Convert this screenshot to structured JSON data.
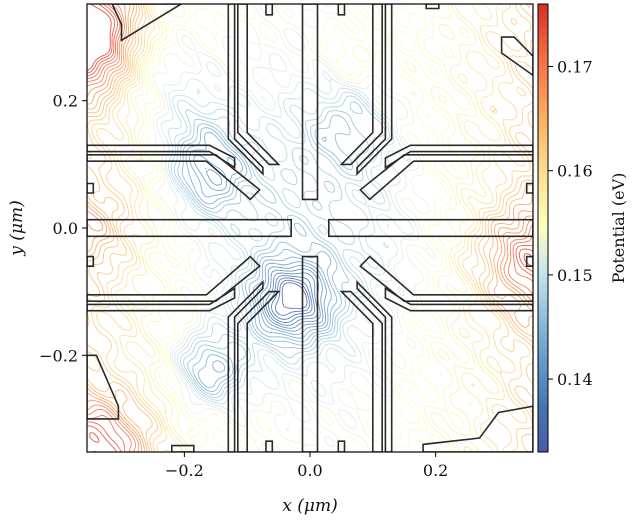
{
  "chart_data": {
    "type": "contour",
    "xlabel": "x (μm)",
    "ylabel": "y (μm)",
    "xlim": [
      -0.355,
      0.355
    ],
    "ylim": [
      -0.352,
      0.352
    ],
    "xticks": [
      -0.2,
      0.0,
      0.2
    ],
    "xtick_labels": [
      "−0.2",
      "0.0",
      "0.2"
    ],
    "yticks": [
      -0.2,
      0.0,
      0.2
    ],
    "ytick_labels": [
      "−0.2",
      "0.0",
      "0.2"
    ],
    "colorbar": {
      "label": "Potential (eV)",
      "colormap": "RdYlBu_r",
      "range": [
        0.133,
        0.176
      ],
      "ticks": [
        0.14,
        0.15,
        0.16,
        0.17
      ],
      "tick_labels": [
        "0.14",
        "0.15",
        "0.16",
        "0.17"
      ]
    },
    "field": {
      "min": 0.133,
      "max": 0.176,
      "global_minimum": {
        "x": -0.03,
        "y": -0.115,
        "value": 0.133
      },
      "secondary_minima": [
        {
          "x": -0.16,
          "y": 0.08,
          "value": 0.141
        },
        {
          "x": -0.16,
          "y": -0.22,
          "value": 0.14
        },
        {
          "x": -0.18,
          "y": 0.15,
          "value": 0.144
        },
        {
          "x": 0.06,
          "y": 0.16,
          "value": 0.143
        }
      ],
      "maxima": [
        {
          "x": -0.35,
          "y": 0.3,
          "value": 0.176
        },
        {
          "x": -0.33,
          "y": -0.35,
          "value": 0.172
        },
        {
          "x": 0.35,
          "y": -0.05,
          "value": 0.171
        },
        {
          "x": -0.35,
          "y": 0.0,
          "value": 0.165
        }
      ],
      "contour_levels": 38
    },
    "gates": [
      {
        "name": "plunger-top-left",
        "points": [
          [
            -0.13,
            0.352
          ],
          [
            -0.12,
            0.352
          ],
          [
            -0.12,
            0.14
          ],
          [
            -0.075,
            0.095
          ],
          [
            -0.075,
            0.085
          ],
          [
            -0.13,
            0.14
          ]
        ]
      },
      {
        "name": "barrier-top-left",
        "points": [
          [
            -0.115,
            0.352
          ],
          [
            -0.115,
            0.15
          ],
          [
            -0.065,
            0.1
          ],
          [
            -0.05,
            0.1
          ],
          [
            -0.1,
            0.15
          ],
          [
            -0.1,
            0.352
          ]
        ]
      },
      {
        "name": "finger-top",
        "points": [
          [
            -0.012,
            0.352
          ],
          [
            0.012,
            0.352
          ],
          [
            0.012,
            0.045
          ],
          [
            -0.012,
            0.045
          ]
        ]
      },
      {
        "name": "barrier-top-right",
        "points": [
          [
            0.1,
            0.352
          ],
          [
            0.1,
            0.15
          ],
          [
            0.05,
            0.1
          ],
          [
            0.065,
            0.1
          ],
          [
            0.115,
            0.15
          ],
          [
            0.115,
            0.352
          ]
        ]
      },
      {
        "name": "plunger-top-right",
        "points": [
          [
            0.12,
            0.352
          ],
          [
            0.13,
            0.352
          ],
          [
            0.13,
            0.14
          ],
          [
            0.075,
            0.085
          ],
          [
            0.075,
            0.095
          ],
          [
            0.12,
            0.14
          ]
        ]
      },
      {
        "name": "lead-left-upper",
        "points": [
          [
            -0.355,
            0.12
          ],
          [
            -0.16,
            0.12
          ],
          [
            -0.12,
            0.095
          ],
          [
            -0.12,
            0.11
          ],
          [
            -0.16,
            0.13
          ],
          [
            -0.355,
            0.13
          ]
        ]
      },
      {
        "name": "gate-left-upper-2",
        "points": [
          [
            -0.355,
            0.105
          ],
          [
            -0.165,
            0.105
          ],
          [
            -0.095,
            0.045
          ],
          [
            -0.08,
            0.06
          ],
          [
            -0.15,
            0.115
          ],
          [
            -0.355,
            0.115
          ]
        ]
      },
      {
        "name": "finger-left",
        "points": [
          [
            -0.355,
            0.013
          ],
          [
            -0.03,
            0.013
          ],
          [
            -0.03,
            -0.013
          ],
          [
            -0.355,
            -0.013
          ]
        ]
      },
      {
        "name": "gate-left-lower-2",
        "points": [
          [
            -0.355,
            -0.105
          ],
          [
            -0.165,
            -0.105
          ],
          [
            -0.095,
            -0.045
          ],
          [
            -0.08,
            -0.06
          ],
          [
            -0.15,
            -0.115
          ],
          [
            -0.355,
            -0.115
          ]
        ]
      },
      {
        "name": "lead-left-lower",
        "points": [
          [
            -0.355,
            -0.12
          ],
          [
            -0.16,
            -0.12
          ],
          [
            -0.12,
            -0.095
          ],
          [
            -0.12,
            -0.11
          ],
          [
            -0.16,
            -0.13
          ],
          [
            -0.355,
            -0.13
          ]
        ]
      },
      {
        "name": "finger-right",
        "points": [
          [
            0.355,
            0.013
          ],
          [
            0.03,
            0.013
          ],
          [
            0.03,
            -0.013
          ],
          [
            0.355,
            -0.013
          ]
        ]
      },
      {
        "name": "gate-right-upper",
        "points": [
          [
            0.355,
            0.105
          ],
          [
            0.165,
            0.105
          ],
          [
            0.095,
            0.045
          ],
          [
            0.08,
            0.06
          ],
          [
            0.15,
            0.115
          ],
          [
            0.355,
            0.115
          ]
        ]
      },
      {
        "name": "lead-right-upper",
        "points": [
          [
            0.355,
            0.12
          ],
          [
            0.16,
            0.12
          ],
          [
            0.12,
            0.095
          ],
          [
            0.12,
            0.11
          ],
          [
            0.16,
            0.13
          ],
          [
            0.355,
            0.13
          ]
        ]
      },
      {
        "name": "gate-right-lower",
        "points": [
          [
            0.355,
            -0.105
          ],
          [
            0.165,
            -0.105
          ],
          [
            0.095,
            -0.045
          ],
          [
            0.08,
            -0.06
          ],
          [
            0.15,
            -0.115
          ],
          [
            0.355,
            -0.115
          ]
        ]
      },
      {
        "name": "lead-right-lower",
        "points": [
          [
            0.355,
            -0.12
          ],
          [
            0.16,
            -0.12
          ],
          [
            0.12,
            -0.095
          ],
          [
            0.12,
            -0.11
          ],
          [
            0.16,
            -0.13
          ],
          [
            0.355,
            -0.13
          ]
        ]
      },
      {
        "name": "plunger-bottom-left",
        "points": [
          [
            -0.13,
            -0.352
          ],
          [
            -0.12,
            -0.352
          ],
          [
            -0.12,
            -0.14
          ],
          [
            -0.075,
            -0.095
          ],
          [
            -0.075,
            -0.085
          ],
          [
            -0.13,
            -0.14
          ]
        ]
      },
      {
        "name": "barrier-bottom-left",
        "points": [
          [
            -0.115,
            -0.352
          ],
          [
            -0.115,
            -0.15
          ],
          [
            -0.065,
            -0.1
          ],
          [
            -0.05,
            -0.1
          ],
          [
            -0.1,
            -0.15
          ],
          [
            -0.1,
            -0.352
          ]
        ]
      },
      {
        "name": "finger-bottom",
        "points": [
          [
            -0.012,
            -0.352
          ],
          [
            0.012,
            -0.352
          ],
          [
            0.012,
            -0.045
          ],
          [
            -0.012,
            -0.045
          ]
        ]
      },
      {
        "name": "barrier-bottom-right",
        "points": [
          [
            0.1,
            -0.352
          ],
          [
            0.1,
            -0.15
          ],
          [
            0.05,
            -0.1
          ],
          [
            0.065,
            -0.1
          ],
          [
            0.115,
            -0.15
          ],
          [
            0.115,
            -0.352
          ]
        ]
      },
      {
        "name": "plunger-bottom-right",
        "points": [
          [
            0.12,
            -0.352
          ],
          [
            0.13,
            -0.352
          ],
          [
            0.13,
            -0.14
          ],
          [
            0.075,
            -0.085
          ],
          [
            0.075,
            -0.095
          ],
          [
            0.12,
            -0.14
          ]
        ]
      },
      {
        "name": "reservoir-top-left",
        "points": [
          [
            -0.315,
            0.352
          ],
          [
            -0.205,
            0.352
          ],
          [
            -0.3,
            0.295
          ],
          [
            -0.3,
            0.32
          ]
        ]
      },
      {
        "name": "reservoir-top-right",
        "points": [
          [
            0.305,
            0.3
          ],
          [
            0.325,
            0.3
          ],
          [
            0.355,
            0.27
          ],
          [
            0.355,
            0.24
          ],
          [
            0.305,
            0.275
          ]
        ]
      },
      {
        "name": "reservoir-bottom-left",
        "points": [
          [
            -0.355,
            -0.2
          ],
          [
            -0.34,
            -0.2
          ],
          [
            -0.305,
            -0.28
          ],
          [
            -0.305,
            -0.3
          ],
          [
            -0.355,
            -0.3
          ]
        ]
      },
      {
        "name": "reservoir-bottom-right",
        "points": [
          [
            0.18,
            -0.352
          ],
          [
            0.355,
            -0.352
          ],
          [
            0.355,
            -0.28
          ],
          [
            0.3,
            -0.29
          ],
          [
            0.27,
            -0.33
          ],
          [
            0.18,
            -0.34
          ]
        ]
      },
      {
        "name": "tab-top-1",
        "points": [
          [
            -0.07,
            0.352
          ],
          [
            -0.06,
            0.352
          ],
          [
            -0.06,
            0.335
          ],
          [
            -0.07,
            0.335
          ]
        ]
      },
      {
        "name": "tab-top-2",
        "points": [
          [
            0.045,
            0.352
          ],
          [
            0.055,
            0.352
          ],
          [
            0.055,
            0.335
          ],
          [
            0.045,
            0.335
          ]
        ]
      },
      {
        "name": "tab-top-3",
        "points": [
          [
            0.185,
            0.352
          ],
          [
            0.205,
            0.352
          ],
          [
            0.205,
            0.345
          ],
          [
            0.185,
            0.345
          ]
        ]
      },
      {
        "name": "tab-bottom-1",
        "points": [
          [
            -0.07,
            -0.352
          ],
          [
            -0.06,
            -0.352
          ],
          [
            -0.06,
            -0.335
          ],
          [
            -0.07,
            -0.335
          ]
        ]
      },
      {
        "name": "tab-bottom-2",
        "points": [
          [
            0.045,
            -0.352
          ],
          [
            0.055,
            -0.352
          ],
          [
            0.055,
            -0.335
          ],
          [
            0.045,
            -0.335
          ]
        ]
      },
      {
        "name": "tab-bottom-3",
        "points": [
          [
            -0.22,
            -0.352
          ],
          [
            -0.185,
            -0.352
          ],
          [
            -0.185,
            -0.342
          ],
          [
            -0.22,
            -0.342
          ]
        ]
      },
      {
        "name": "tab-left-1",
        "points": [
          [
            -0.355,
            0.07
          ],
          [
            -0.345,
            0.07
          ],
          [
            -0.345,
            0.055
          ],
          [
            -0.355,
            0.055
          ]
        ]
      },
      {
        "name": "tab-left-2",
        "points": [
          [
            -0.355,
            -0.045
          ],
          [
            -0.345,
            -0.045
          ],
          [
            -0.345,
            -0.06
          ],
          [
            -0.355,
            -0.06
          ]
        ]
      },
      {
        "name": "tab-right-1",
        "points": [
          [
            0.355,
            0.07
          ],
          [
            0.345,
            0.07
          ],
          [
            0.345,
            0.055
          ],
          [
            0.355,
            0.055
          ]
        ]
      },
      {
        "name": "tab-right-2",
        "points": [
          [
            0.355,
            -0.045
          ],
          [
            0.345,
            -0.045
          ],
          [
            0.345,
            -0.06
          ],
          [
            0.355,
            -0.06
          ]
        ]
      }
    ]
  }
}
